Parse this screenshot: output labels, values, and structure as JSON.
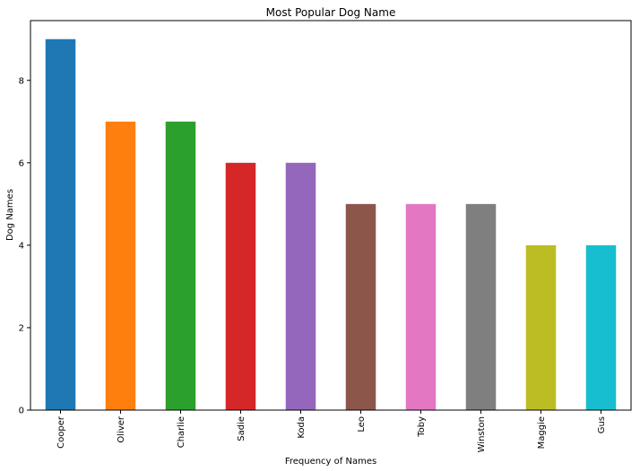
{
  "chart_data": {
    "type": "bar",
    "title": "Most Popular Dog Name",
    "xlabel": "Frequency of Names",
    "ylabel": "Dog Names",
    "categories": [
      "Cooper",
      "Oliver",
      "Charlie",
      "Sadie",
      "Koda",
      "Leo",
      "Toby",
      "Winston",
      "Maggie",
      "Gus"
    ],
    "values": [
      9,
      7,
      7,
      6,
      6,
      5,
      5,
      5,
      4,
      4
    ],
    "colors": [
      "#1f77b4",
      "#ff7f0e",
      "#2ca02c",
      "#d62728",
      "#9467bd",
      "#8c564b",
      "#e377c2",
      "#7f7f7f",
      "#bcbd22",
      "#17becf"
    ],
    "ylim": [
      0,
      9.45
    ],
    "yticks": [
      0,
      2,
      4,
      6,
      8
    ],
    "grid": false,
    "legend": null
  }
}
